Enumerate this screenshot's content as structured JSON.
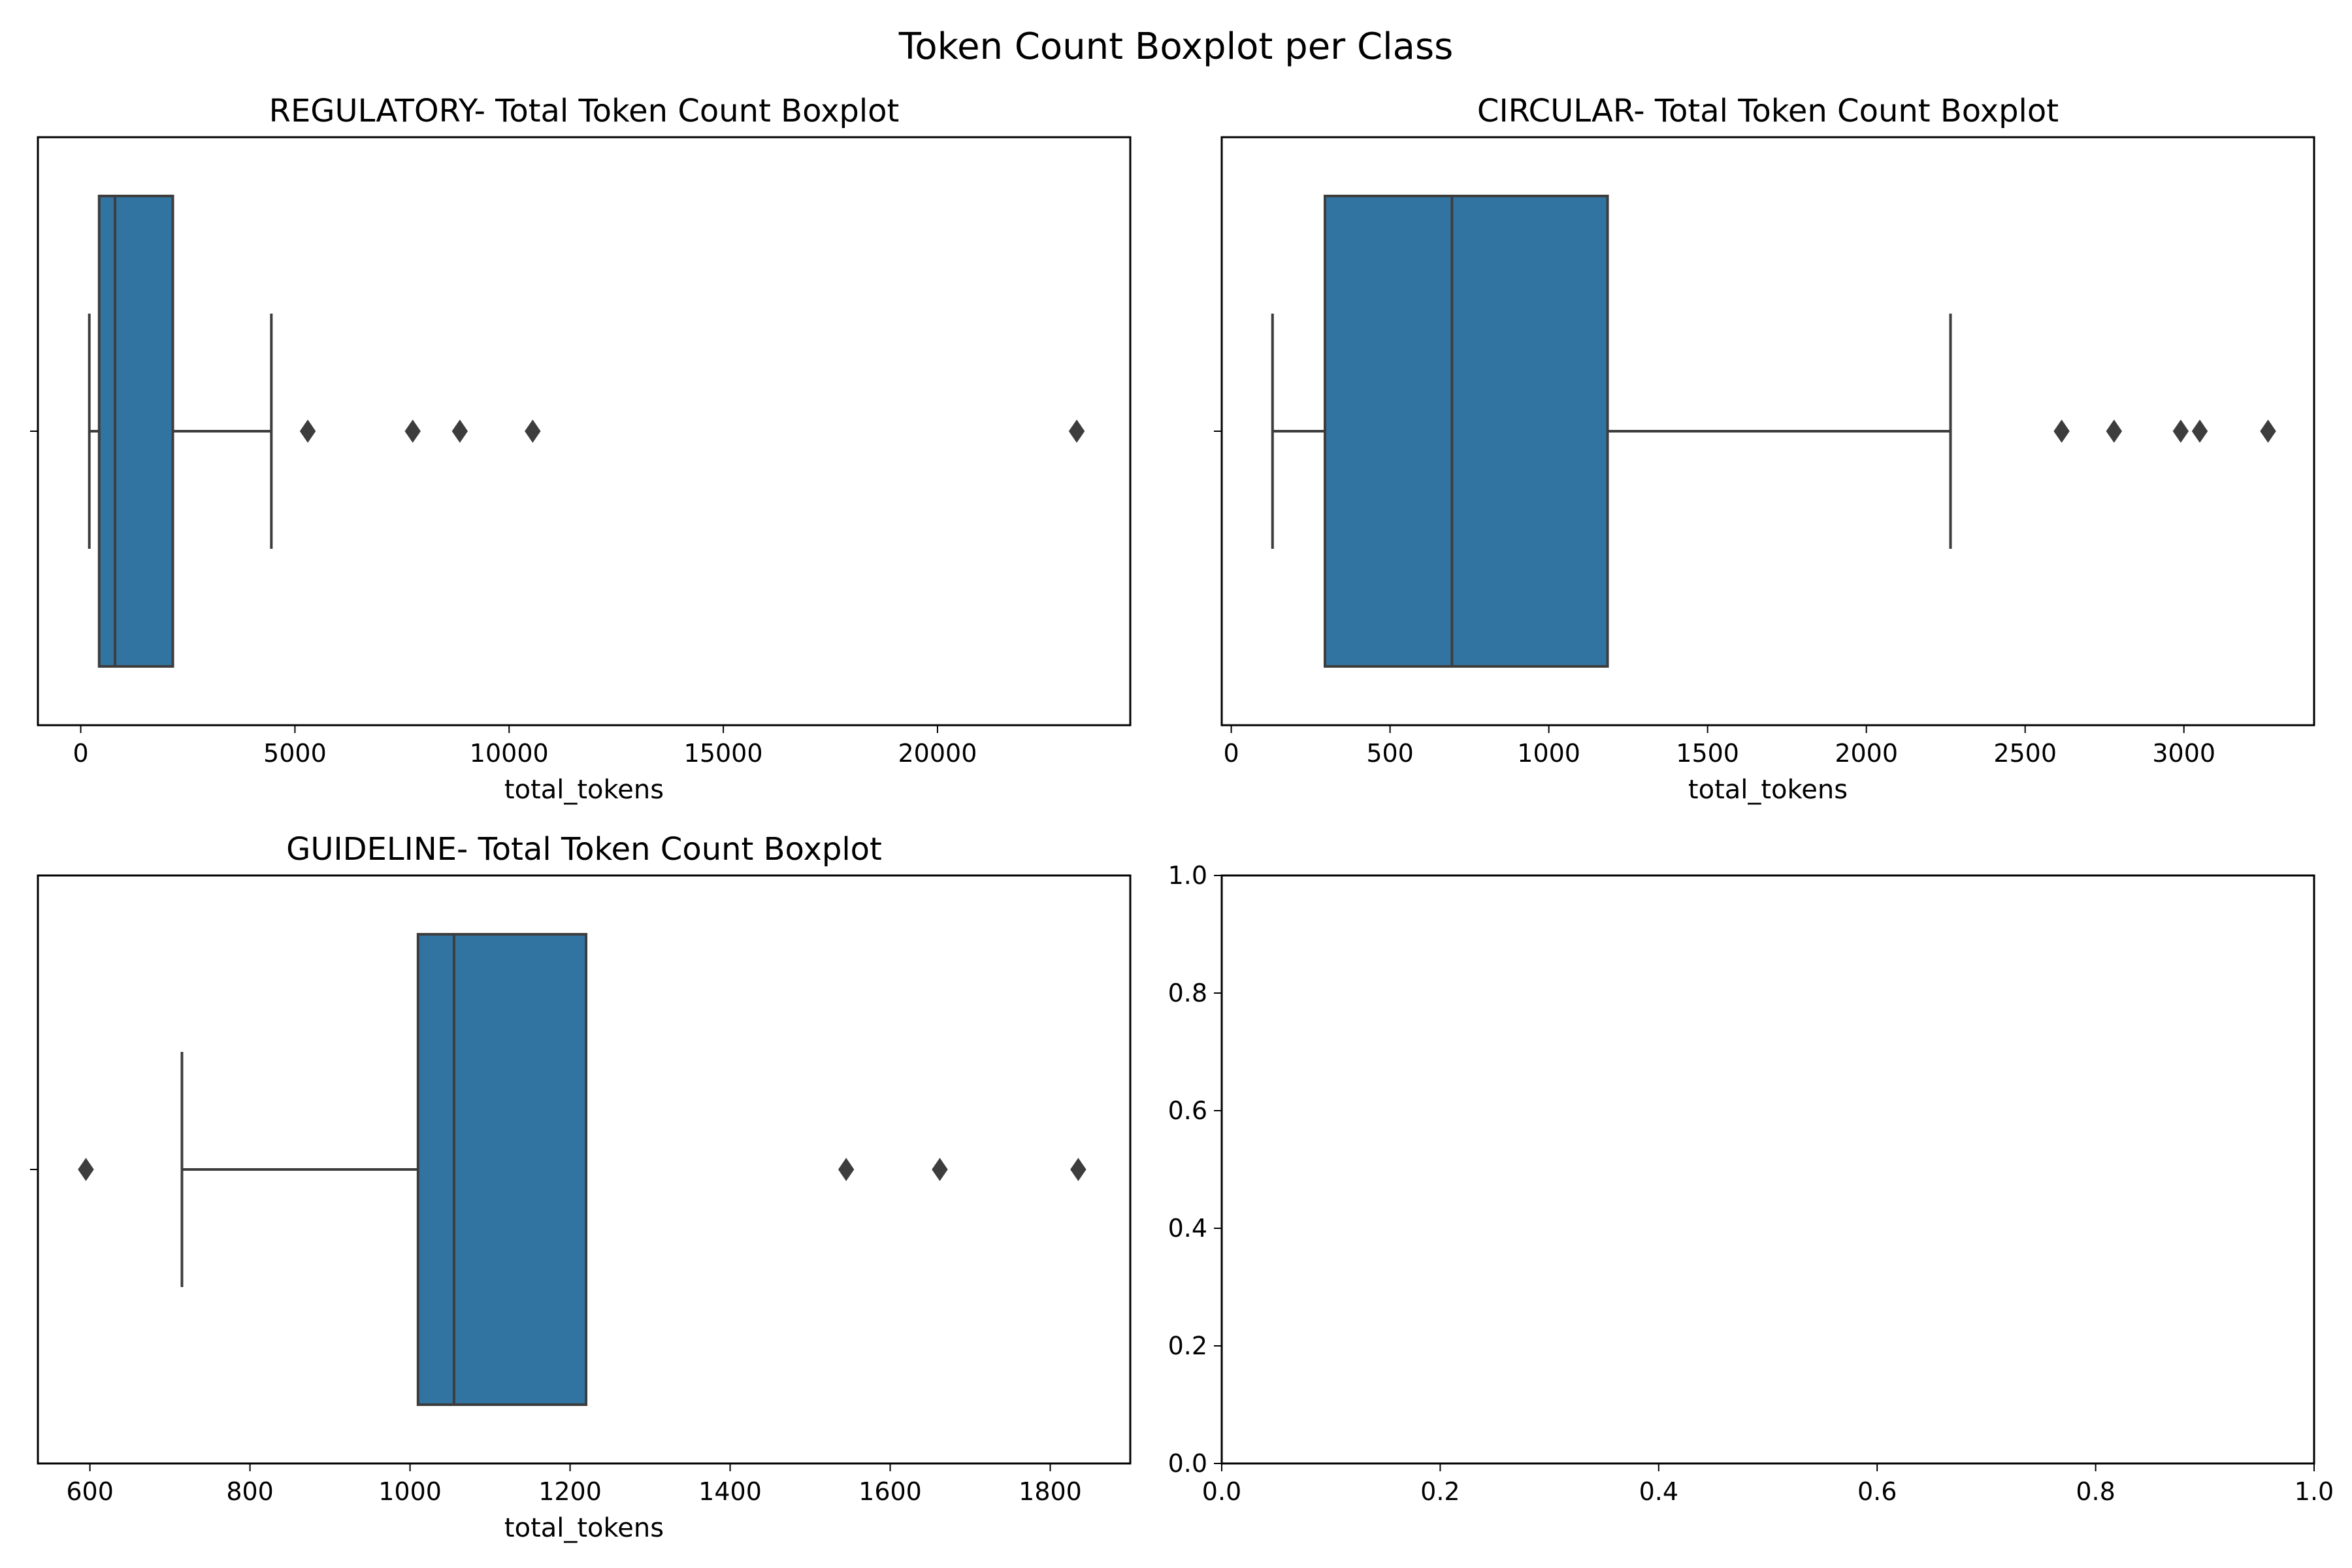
{
  "figure": {
    "title": "Token Count Boxplot per Class"
  },
  "colors": {
    "box_fill": "#3274a1",
    "line": "#3d3d3d",
    "spine": "#000000"
  },
  "chart_data": [
    {
      "type": "boxplot",
      "title": "REGULATORY- Total Token Count Boxplot",
      "xlabel": "total_tokens",
      "ylabel": "",
      "xlim": [
        -1000,
        24500
      ],
      "xticks": [
        0,
        5000,
        10000,
        15000,
        20000
      ],
      "xtick_labels": [
        "0",
        "5000",
        "10000",
        "15000",
        "20000"
      ],
      "box": {
        "whisker_low": 200,
        "q1": 430,
        "median": 800,
        "q3": 2150,
        "whisker_high": 4450
      },
      "outliers": [
        5300,
        7750,
        8850,
        10550,
        23250
      ]
    },
    {
      "type": "boxplot",
      "title": "CIRCULAR- Total Token Count Boxplot",
      "xlabel": "total_tokens",
      "ylabel": "",
      "xlim": [
        -30,
        3410
      ],
      "xticks": [
        0,
        500,
        1000,
        1500,
        2000,
        2500,
        3000
      ],
      "xtick_labels": [
        "0",
        "500",
        "1000",
        "1500",
        "2000",
        "2500",
        "3000"
      ],
      "box": {
        "whisker_low": 130,
        "q1": 295,
        "median": 695,
        "q3": 1185,
        "whisker_high": 2265
      },
      "outliers": [
        2615,
        2780,
        2990,
        3050,
        3265
      ]
    },
    {
      "type": "boxplot",
      "title": "GUIDELINE- Total Token Count Boxplot",
      "xlabel": "total_tokens",
      "ylabel": "",
      "xlim": [
        535,
        1900
      ],
      "xticks": [
        600,
        800,
        1000,
        1200,
        1400,
        1600,
        1800
      ],
      "xtick_labels": [
        "600",
        "800",
        "1000",
        "1200",
        "1400",
        "1600",
        "1800"
      ],
      "box": {
        "whisker_low": 715,
        "q1": 1010,
        "median": 1055,
        "q3": 1220,
        "whisker_high": null
      },
      "outliers": [
        595,
        1545,
        1662,
        1835
      ]
    },
    {
      "type": "empty",
      "title": "",
      "xlim": [
        0,
        1
      ],
      "ylim": [
        0,
        1
      ],
      "xticks": [
        0,
        0.2,
        0.4,
        0.6,
        0.8,
        1
      ],
      "xtick_labels": [
        "0.0",
        "0.2",
        "0.4",
        "0.6",
        "0.8",
        "1.0"
      ],
      "yticks": [
        0,
        0.2,
        0.4,
        0.6,
        0.8,
        1
      ],
      "ytick_labels": [
        "0.0",
        "0.2",
        "0.4",
        "0.6",
        "0.8",
        "1.0"
      ]
    }
  ]
}
